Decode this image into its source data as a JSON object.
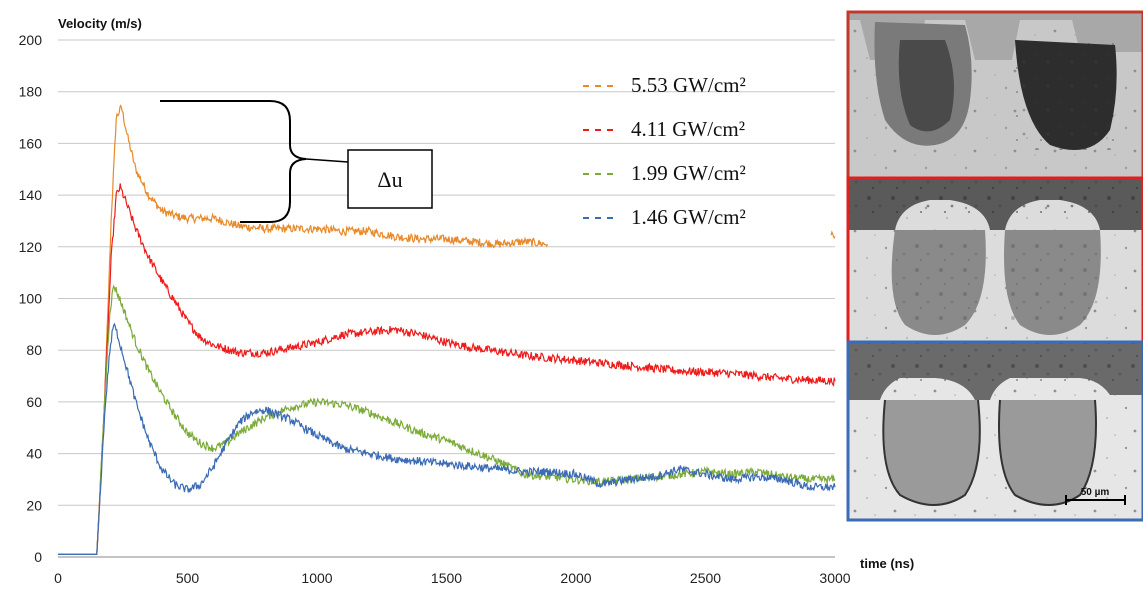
{
  "chart_data": {
    "type": "line",
    "ylabel": "Velocity (m/s)",
    "xlabel": "time (ns)",
    "xlim": [
      0,
      3000
    ],
    "ylim": [
      0,
      200
    ],
    "xticks": [
      0,
      500,
      1000,
      1500,
      2000,
      2500,
      3000
    ],
    "yticks": [
      0,
      20,
      40,
      60,
      80,
      100,
      120,
      140,
      160,
      180,
      200
    ],
    "grid": "horizontal",
    "legend_position": "top-right",
    "series": [
      {
        "name": "5.53 GW/cm²",
        "color": "#e8892a",
        "points": [
          [
            0,
            1
          ],
          [
            150,
            1
          ],
          [
            180,
            60
          ],
          [
            205,
            130
          ],
          [
            225,
            170
          ],
          [
            245,
            174
          ],
          [
            270,
            162
          ],
          [
            300,
            150
          ],
          [
            350,
            140
          ],
          [
            400,
            134
          ],
          [
            450,
            132
          ],
          [
            500,
            131
          ],
          [
            600,
            131
          ],
          [
            700,
            128
          ],
          [
            800,
            127
          ],
          [
            900,
            127
          ],
          [
            1000,
            127
          ],
          [
            1100,
            126
          ],
          [
            1200,
            126
          ],
          [
            1300,
            124
          ],
          [
            1400,
            123
          ],
          [
            1500,
            123
          ],
          [
            1600,
            122
          ],
          [
            1700,
            121
          ],
          [
            1800,
            122
          ],
          [
            1890,
            121
          ]
        ],
        "extra_points": [
          [
            2985,
            125
          ],
          [
            3000,
            124
          ]
        ]
      },
      {
        "name": "4.11 GW/cm²",
        "color": "#ee1b1b",
        "points": [
          [
            0,
            1
          ],
          [
            150,
            1
          ],
          [
            180,
            60
          ],
          [
            205,
            115
          ],
          [
            225,
            140
          ],
          [
            240,
            143
          ],
          [
            260,
            138
          ],
          [
            300,
            127
          ],
          [
            350,
            116
          ],
          [
            400,
            107
          ],
          [
            450,
            99
          ],
          [
            500,
            91
          ],
          [
            550,
            85
          ],
          [
            600,
            82
          ],
          [
            700,
            79
          ],
          [
            800,
            79
          ],
          [
            900,
            81
          ],
          [
            1000,
            83
          ],
          [
            1100,
            86
          ],
          [
            1200,
            87
          ],
          [
            1300,
            88
          ],
          [
            1400,
            86
          ],
          [
            1500,
            83
          ],
          [
            1600,
            81
          ],
          [
            1800,
            78
          ],
          [
            2000,
            76
          ],
          [
            2200,
            74
          ],
          [
            2400,
            72
          ],
          [
            2600,
            71
          ],
          [
            2800,
            69
          ],
          [
            3000,
            68
          ]
        ]
      },
      {
        "name": "1.99 GW/cm²",
        "color": "#7cab3a",
        "points": [
          [
            0,
            1
          ],
          [
            150,
            1
          ],
          [
            180,
            60
          ],
          [
            200,
            95
          ],
          [
            215,
            105
          ],
          [
            230,
            102
          ],
          [
            260,
            94
          ],
          [
            300,
            83
          ],
          [
            350,
            72
          ],
          [
            400,
            63
          ],
          [
            450,
            55
          ],
          [
            500,
            48
          ],
          [
            550,
            44
          ],
          [
            600,
            42
          ],
          [
            650,
            44
          ],
          [
            700,
            48
          ],
          [
            800,
            54
          ],
          [
            900,
            58
          ],
          [
            1000,
            60
          ],
          [
            1100,
            59
          ],
          [
            1200,
            56
          ],
          [
            1300,
            52
          ],
          [
            1400,
            48
          ],
          [
            1500,
            45
          ],
          [
            1600,
            41
          ],
          [
            1700,
            37
          ],
          [
            1800,
            32
          ],
          [
            1900,
            31
          ],
          [
            2000,
            30
          ],
          [
            2100,
            29
          ],
          [
            2200,
            30
          ],
          [
            2300,
            31
          ],
          [
            2400,
            32
          ],
          [
            2500,
            33
          ],
          [
            2600,
            32
          ],
          [
            2700,
            33
          ],
          [
            2800,
            31
          ],
          [
            2900,
            30
          ],
          [
            3000,
            30
          ]
        ]
      },
      {
        "name": "1.46 GW/cm²",
        "color": "#3b6bb4",
        "points": [
          [
            0,
            1
          ],
          [
            150,
            1
          ],
          [
            180,
            55
          ],
          [
            200,
            80
          ],
          [
            215,
            90
          ],
          [
            230,
            86
          ],
          [
            260,
            75
          ],
          [
            300,
            60
          ],
          [
            350,
            45
          ],
          [
            400,
            34
          ],
          [
            450,
            28
          ],
          [
            500,
            26
          ],
          [
            550,
            28
          ],
          [
            600,
            35
          ],
          [
            650,
            44
          ],
          [
            700,
            52
          ],
          [
            750,
            56
          ],
          [
            800,
            57
          ],
          [
            900,
            53
          ],
          [
            1000,
            47
          ],
          [
            1100,
            42
          ],
          [
            1200,
            40
          ],
          [
            1300,
            38
          ],
          [
            1400,
            37
          ],
          [
            1500,
            36
          ],
          [
            1600,
            35
          ],
          [
            1700,
            34
          ],
          [
            1800,
            33
          ],
          [
            1900,
            33
          ],
          [
            2000,
            32
          ],
          [
            2100,
            28
          ],
          [
            2200,
            30
          ],
          [
            2300,
            31
          ],
          [
            2400,
            34
          ],
          [
            2500,
            32
          ],
          [
            2600,
            30
          ],
          [
            2700,
            31
          ],
          [
            2800,
            30
          ],
          [
            2900,
            27
          ],
          [
            3000,
            27
          ]
        ]
      }
    ],
    "annotations": [
      {
        "text": "Δu"
      },
      {
        "text": "50 µm"
      }
    ]
  },
  "micrographs": [
    {
      "name": "micrograph-5-53",
      "border_color": "#e8892a"
    },
    {
      "name": "micrograph-4-11",
      "border_color": "#ee1b1b"
    },
    {
      "name": "micrograph-1-46",
      "border_color": "#3b6bb4"
    }
  ]
}
